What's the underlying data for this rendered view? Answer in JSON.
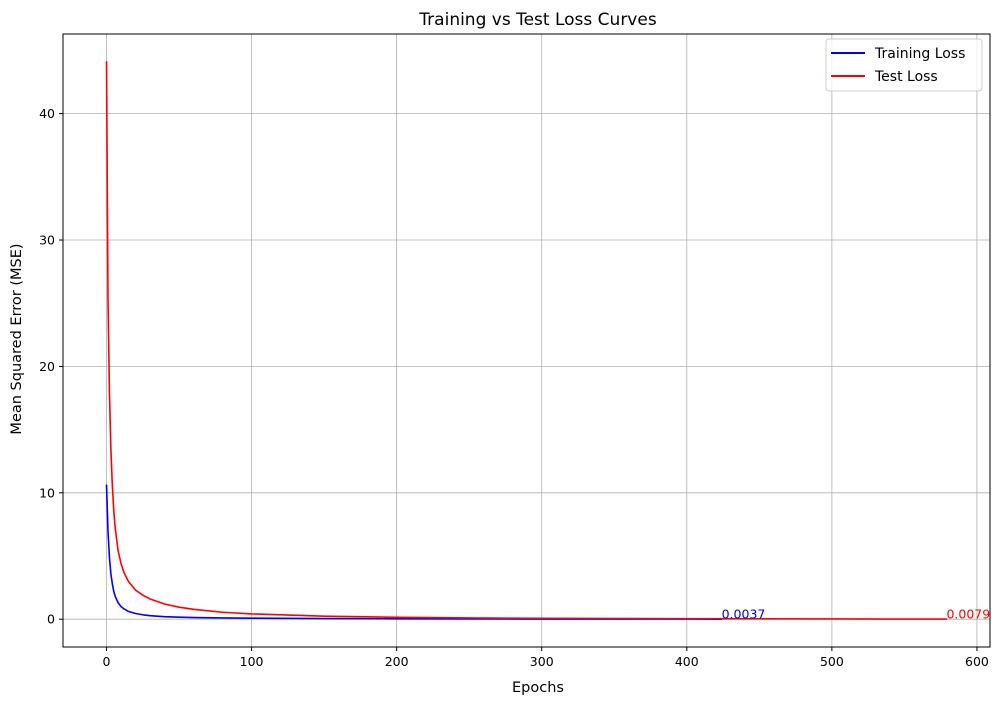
{
  "chart_data": {
    "type": "line",
    "title": "Training vs Test Loss Curves",
    "xlabel": "Epochs",
    "ylabel": "Mean Squared Error (MSE)",
    "xlim": [
      -30,
      609
    ],
    "ylim": [
      -2.2,
      46.3
    ],
    "xticks": [
      0,
      100,
      200,
      300,
      400,
      500,
      600
    ],
    "yticks": [
      0,
      10,
      20,
      30,
      40
    ],
    "grid": true,
    "legend_position": "top-right",
    "series": [
      {
        "name": "Training Loss",
        "color": "#0000ff",
        "points": [
          [
            0,
            10.6
          ],
          [
            1,
            7.0
          ],
          [
            2,
            4.9
          ],
          [
            3,
            3.6
          ],
          [
            4,
            2.8
          ],
          [
            5,
            2.2
          ],
          [
            6,
            1.8
          ],
          [
            8,
            1.3
          ],
          [
            10,
            1.0
          ],
          [
            12,
            0.82
          ],
          [
            15,
            0.62
          ],
          [
            20,
            0.45
          ],
          [
            25,
            0.35
          ],
          [
            30,
            0.28
          ],
          [
            40,
            0.2
          ],
          [
            50,
            0.16
          ],
          [
            60,
            0.13
          ],
          [
            80,
            0.1
          ],
          [
            100,
            0.08
          ],
          [
            150,
            0.05
          ],
          [
            200,
            0.03
          ],
          [
            250,
            0.02
          ],
          [
            300,
            0.012
          ],
          [
            350,
            0.008
          ],
          [
            400,
            0.005
          ],
          [
            424,
            0.0037
          ]
        ],
        "final_value_label": "0.0037"
      },
      {
        "name": "Test Loss",
        "color": "#ff0000",
        "points": [
          [
            0,
            44.1
          ],
          [
            1,
            25.5
          ],
          [
            2,
            18.0
          ],
          [
            3,
            13.5
          ],
          [
            4,
            10.6
          ],
          [
            5,
            8.6
          ],
          [
            6,
            7.2
          ],
          [
            8,
            5.4
          ],
          [
            10,
            4.4
          ],
          [
            12,
            3.7
          ],
          [
            15,
            3.0
          ],
          [
            20,
            2.3
          ],
          [
            25,
            1.9
          ],
          [
            30,
            1.6
          ],
          [
            40,
            1.2
          ],
          [
            50,
            0.95
          ],
          [
            60,
            0.78
          ],
          [
            80,
            0.55
          ],
          [
            100,
            0.42
          ],
          [
            150,
            0.24
          ],
          [
            200,
            0.15
          ],
          [
            250,
            0.1
          ],
          [
            300,
            0.07
          ],
          [
            400,
            0.04
          ],
          [
            500,
            0.02
          ],
          [
            579,
            0.0079
          ]
        ],
        "final_value_label": "0.0079"
      }
    ]
  }
}
